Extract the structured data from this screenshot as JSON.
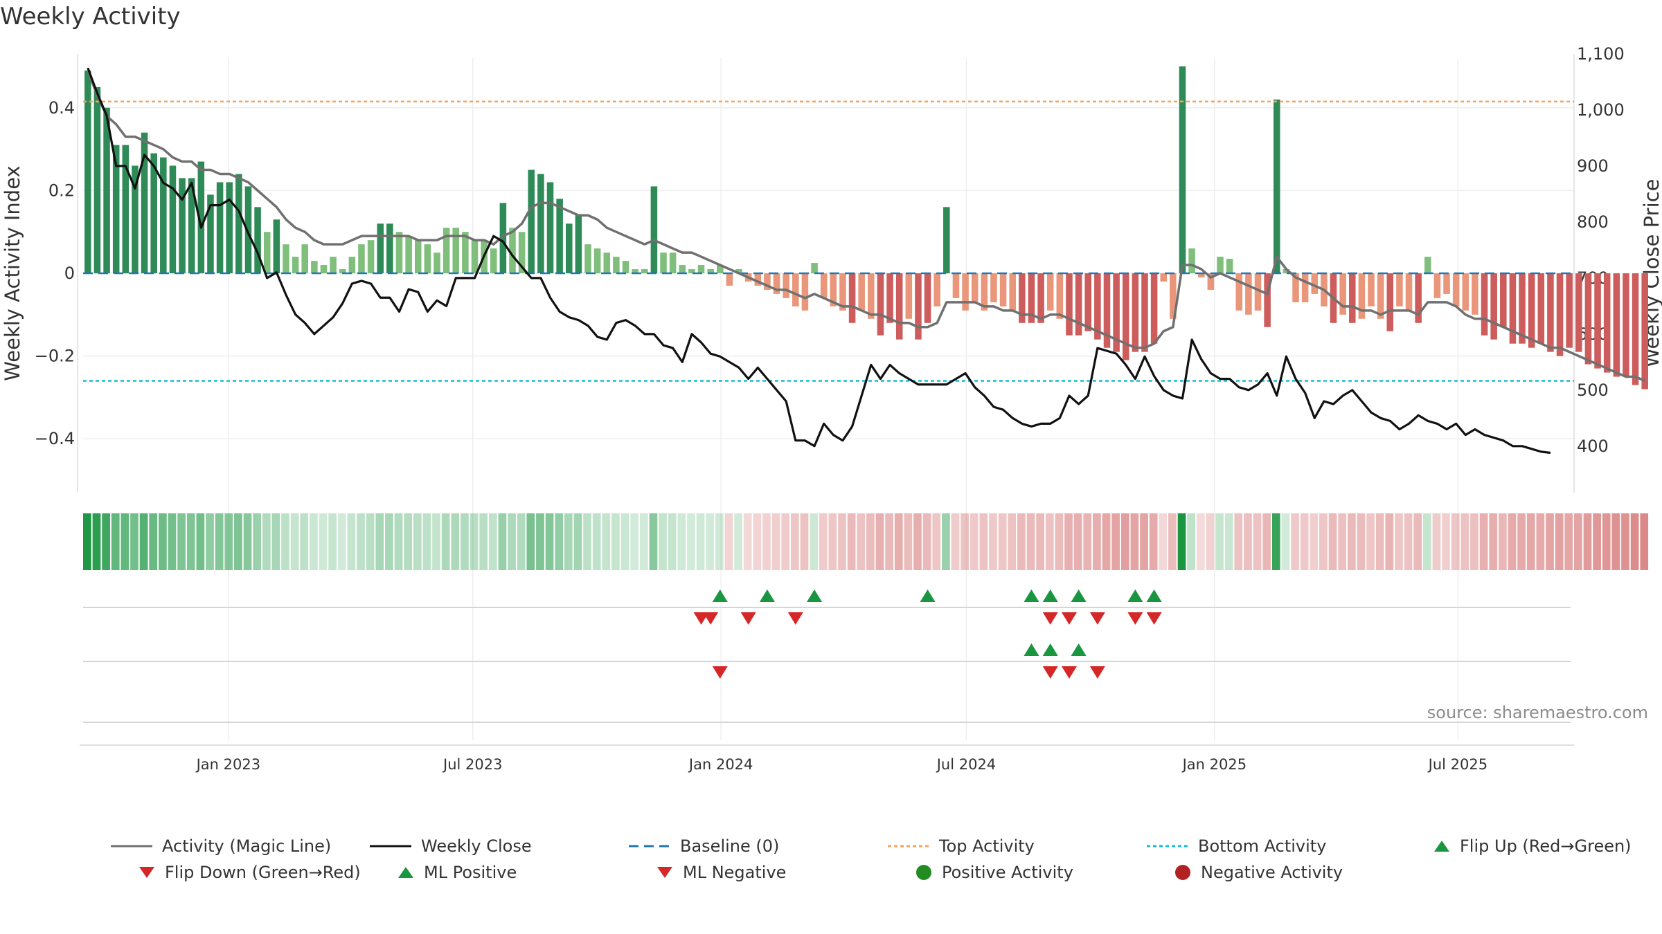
{
  "title": "Weekly Activity",
  "source": "source: sharemaestro.com",
  "colors": {
    "pos_strong": "#2e8b57",
    "pos_light": "#7fbf7b",
    "neg_strong": "#cd5c5c",
    "neg_light": "#e9967a",
    "magic_line": "#707070",
    "close_line": "#111111",
    "baseline": "#1f77b4",
    "top_line": "#f4a460",
    "bottom_line": "#17becf",
    "flip_up": "#1a9641",
    "flip_down": "#d62728",
    "pos_dot": "#228b22",
    "neg_dot": "#b22222"
  },
  "chart_data": {
    "type": "bar",
    "title": "Weekly Activity",
    "xlabel": "",
    "ylabel": "Weekly Activity Index",
    "y2label": "Weekly Close Price",
    "ylim": [
      -0.53,
      0.53
    ],
    "y2lim": [
      317,
      1100
    ],
    "yticks": [
      0.4,
      0.2,
      0,
      -0.2,
      -0.4
    ],
    "ytick_labels": [
      "0.4",
      "0.2",
      "0",
      "−0.2",
      "−0.4"
    ],
    "y2ticks": [
      1100,
      1000,
      900,
      800,
      700,
      600,
      500,
      400
    ],
    "y2tick_labels": [
      "1,100",
      "1,000",
      "900",
      "800",
      "700",
      "600",
      "500",
      "400"
    ],
    "x_start": "2022-09-12",
    "week_count": 158,
    "date_ticks": [
      {
        "label": "Jan 2023",
        "week": 15.4
      },
      {
        "label": "Jul 2023",
        "week": 41.3
      },
      {
        "label": "Jan 2024",
        "week": 67.6
      },
      {
        "label": "Jul 2024",
        "week": 93.6
      },
      {
        "label": "Jan 2025",
        "week": 119.9
      },
      {
        "label": "Jul 2025",
        "week": 145.7
      }
    ],
    "top_activity": 0.415,
    "bottom_activity": -0.26,
    "baseline": 0,
    "activity": [
      0.49,
      0.45,
      0.4,
      0.31,
      0.31,
      0.26,
      0.34,
      0.29,
      0.28,
      0.26,
      0.23,
      0.23,
      0.27,
      0.19,
      0.22,
      0.22,
      0.24,
      0.21,
      0.16,
      0.1,
      0.13,
      0.07,
      0.04,
      0.07,
      0.03,
      0.02,
      0.04,
      0.01,
      0.04,
      0.07,
      0.08,
      0.12,
      0.12,
      0.1,
      0.09,
      0.08,
      0.07,
      0.05,
      0.11,
      0.11,
      0.1,
      0.08,
      0.08,
      0.06,
      0.17,
      0.11,
      0.1,
      0.25,
      0.24,
      0.22,
      0.18,
      0.12,
      0.14,
      0.07,
      0.06,
      0.05,
      0.04,
      0.03,
      0.01,
      0.01,
      0.21,
      0.05,
      0.05,
      0.02,
      0.01,
      0.02,
      0.01,
      0.02,
      -0.03,
      0.01,
      -0.02,
      -0.03,
      -0.04,
      -0.05,
      -0.06,
      -0.08,
      -0.09,
      0.025,
      -0.06,
      -0.08,
      -0.09,
      -0.12,
      -0.09,
      -0.11,
      -0.15,
      -0.12,
      -0.16,
      -0.11,
      -0.16,
      -0.12,
      -0.08,
      0.16,
      -0.06,
      -0.09,
      -0.07,
      -0.09,
      -0.07,
      -0.08,
      -0.09,
      -0.12,
      -0.12,
      -0.12,
      -0.09,
      -0.11,
      -0.15,
      -0.15,
      -0.14,
      -0.16,
      -0.18,
      -0.19,
      -0.21,
      -0.19,
      -0.19,
      -0.17,
      -0.02,
      -0.11,
      0.5,
      0.06,
      -0.01,
      -0.04,
      0.04,
      0.035,
      -0.09,
      -0.1,
      -0.09,
      -0.13,
      0.42,
      0.01,
      -0.07,
      -0.07,
      -0.05,
      -0.08,
      -0.12,
      -0.1,
      -0.12,
      -0.11,
      -0.08,
      -0.11,
      -0.14,
      -0.08,
      -0.09,
      -0.12,
      0.04,
      -0.06,
      -0.05,
      -0.08,
      -0.09,
      -0.1,
      -0.15,
      -0.16,
      -0.13,
      -0.17,
      -0.17,
      -0.18,
      -0.17,
      -0.19,
      -0.2,
      -0.18,
      -0.19,
      -0.22,
      -0.23,
      -0.24,
      -0.25,
      -0.25,
      -0.27,
      -0.28
    ],
    "magic_line": [
      0.49,
      0.43,
      0.38,
      0.36,
      0.33,
      0.33,
      0.32,
      0.31,
      0.3,
      0.28,
      0.27,
      0.27,
      0.25,
      0.25,
      0.24,
      0.24,
      0.23,
      0.22,
      0.2,
      0.18,
      0.16,
      0.13,
      0.11,
      0.1,
      0.08,
      0.07,
      0.07,
      0.07,
      0.08,
      0.09,
      0.09,
      0.09,
      0.09,
      0.09,
      0.09,
      0.08,
      0.08,
      0.08,
      0.09,
      0.09,
      0.09,
      0.08,
      0.08,
      0.07,
      0.09,
      0.1,
      0.12,
      0.16,
      0.17,
      0.17,
      0.16,
      0.15,
      0.14,
      0.14,
      0.13,
      0.11,
      0.1,
      0.09,
      0.08,
      0.07,
      0.08,
      0.07,
      0.06,
      0.05,
      0.05,
      0.04,
      0.03,
      0.02,
      0.01,
      0.0,
      -0.01,
      -0.02,
      -0.03,
      -0.04,
      -0.04,
      -0.05,
      -0.06,
      -0.05,
      -0.06,
      -0.07,
      -0.08,
      -0.08,
      -0.09,
      -0.1,
      -0.1,
      -0.11,
      -0.12,
      -0.12,
      -0.13,
      -0.13,
      -0.12,
      -0.07,
      -0.07,
      -0.07,
      -0.07,
      -0.08,
      -0.08,
      -0.09,
      -0.09,
      -0.1,
      -0.1,
      -0.11,
      -0.1,
      -0.1,
      -0.11,
      -0.12,
      -0.13,
      -0.14,
      -0.15,
      -0.16,
      -0.17,
      -0.18,
      -0.18,
      -0.17,
      -0.14,
      -0.13,
      0.02,
      0.02,
      0.01,
      -0.01,
      0.0,
      -0.01,
      -0.02,
      -0.03,
      -0.04,
      -0.05,
      0.04,
      0.01,
      -0.01,
      -0.02,
      -0.03,
      -0.04,
      -0.06,
      -0.08,
      -0.08,
      -0.09,
      -0.09,
      -0.1,
      -0.09,
      -0.09,
      -0.09,
      -0.1,
      -0.07,
      -0.07,
      -0.07,
      -0.08,
      -0.1,
      -0.11,
      -0.11,
      -0.12,
      -0.13,
      -0.14,
      -0.15,
      -0.16,
      -0.17,
      -0.18,
      -0.18,
      -0.19,
      -0.2,
      -0.21,
      -0.22,
      -0.23,
      -0.24,
      -0.25,
      -0.25,
      -0.26
    ],
    "weekly_close": [
      1075,
      1030,
      990,
      900,
      900,
      860,
      920,
      900,
      870,
      860,
      840,
      870,
      790,
      830,
      830,
      840,
      820,
      780,
      745,
      700,
      710,
      670,
      635,
      620,
      600,
      615,
      630,
      655,
      690,
      695,
      690,
      665,
      665,
      640,
      680,
      675,
      640,
      660,
      650,
      700,
      700,
      700,
      740,
      775,
      765,
      740,
      720,
      700,
      700,
      665,
      640,
      630,
      625,
      615,
      595,
      590,
      620,
      625,
      615,
      600,
      600,
      580,
      575,
      550,
      600,
      585,
      565,
      560,
      550,
      540,
      520,
      540,
      520,
      500,
      480,
      410,
      410,
      400,
      440,
      420,
      410,
      435,
      490,
      545,
      520,
      545,
      530,
      520,
      510,
      510,
      510,
      510,
      520,
      530,
      505,
      490,
      470,
      465,
      450,
      440,
      435,
      440,
      440,
      450,
      490,
      475,
      490,
      575,
      570,
      565,
      545,
      520,
      560,
      525,
      500,
      490,
      485,
      590,
      555,
      530,
      520,
      520,
      505,
      500,
      510,
      530,
      490,
      560,
      520,
      495,
      450,
      480,
      475,
      490,
      500,
      480,
      460,
      450,
      445,
      430,
      440,
      455,
      445,
      440,
      430,
      440,
      420,
      430,
      420,
      415,
      410,
      400,
      400,
      395,
      390,
      388
    ],
    "signals": {
      "flip_up_weeks": [
        67,
        72,
        77,
        89,
        100,
        102,
        105,
        111,
        113
      ],
      "flip_down_weeks": [
        65,
        66,
        70,
        75,
        102,
        104,
        107,
        111,
        113
      ],
      "ml_positive_weeks": [
        100,
        102,
        105
      ],
      "ml_negative_weeks": [
        67,
        102,
        104,
        107
      ]
    }
  },
  "legend": [
    {
      "label": "Activity (Magic Line)",
      "type": "line-solid",
      "color": "#707070"
    },
    {
      "label": "Weekly Close",
      "type": "line-solid",
      "color": "#111111"
    },
    {
      "label": "Baseline (0)",
      "type": "line-dash",
      "color": "#1f77b4"
    },
    {
      "label": "Top Activity",
      "type": "line-dot",
      "color": "#f4a460"
    },
    {
      "label": "Bottom Activity",
      "type": "line-dot",
      "color": "#17becf"
    },
    {
      "label": "Flip Up (Red→Green)",
      "type": "triangle-up",
      "color": "#1a9641"
    },
    {
      "label": "Flip Down (Green→Red)",
      "type": "triangle-down",
      "color": "#d62728"
    },
    {
      "label": "ML Positive",
      "type": "triangle-up",
      "color": "#1a9641"
    },
    {
      "label": "ML Negative",
      "type": "triangle-down",
      "color": "#d62728"
    },
    {
      "label": "Positive Activity",
      "type": "dot",
      "color": "#228b22"
    },
    {
      "label": "Negative Activity",
      "type": "dot",
      "color": "#b22222"
    }
  ]
}
